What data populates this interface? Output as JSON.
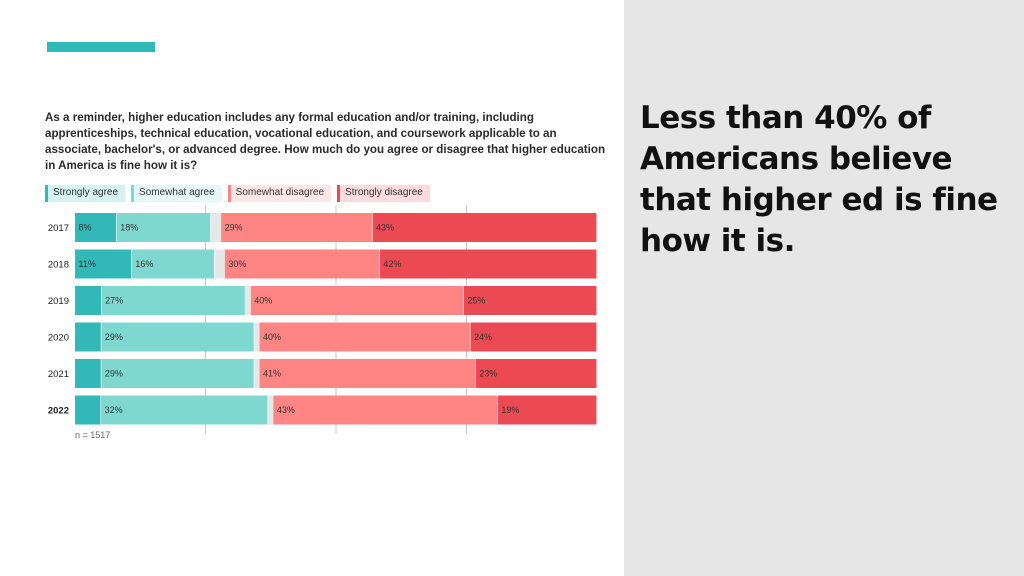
{
  "slide": {
    "headline": "Less than 40% of Americans believe that higher ed is fine how it is."
  },
  "question": "As a reminder, higher education includes any formal education and/or training, including apprenticeships, technical education, vocational education, and coursework applicable to an associate, bachelor's, or advanced degree. How much do you agree or disagree that higher education in America is fine how it is?",
  "footnote": "n = 1517",
  "colors": {
    "strongly_agree": "#33b8b8",
    "somewhat_agree": "#7fd8d0",
    "neutral": "#e3e8e8",
    "somewhat_disagree": "#ff8585",
    "strongly_disagree": "#eb4a55",
    "accent": "#33b8b8"
  },
  "chart_data": {
    "type": "bar",
    "orientation": "horizontal-stacked",
    "categories": [
      "2017",
      "2018",
      "2019",
      "2020",
      "2021",
      "2022"
    ],
    "highlighted_category": "2022",
    "legend_position": "top-left",
    "series": [
      {
        "name": "Strongly agree",
        "color_key": "strongly_agree",
        "values": [
          8,
          11,
          5,
          5,
          5,
          5
        ],
        "labels": [
          "8%",
          "11%",
          "",
          "",
          "",
          ""
        ]
      },
      {
        "name": "Somewhat agree",
        "color_key": "somewhat_agree",
        "values": [
          18,
          16,
          27,
          29,
          29,
          32
        ],
        "labels": [
          "18%",
          "16%",
          "27%",
          "29%",
          "29%",
          "32%"
        ]
      },
      {
        "name": "",
        "color_key": "neutral",
        "values": [
          2,
          2,
          1,
          1,
          1,
          1
        ],
        "labels": [
          "",
          "",
          "",
          "",
          "",
          ""
        ]
      },
      {
        "name": "Somewhat disagree",
        "color_key": "somewhat_disagree",
        "values": [
          29,
          30,
          40,
          40,
          41,
          43
        ],
        "labels": [
          "29%",
          "30%",
          "40%",
          "40%",
          "41%",
          "43%"
        ]
      },
      {
        "name": "Strongly disagree",
        "color_key": "strongly_disagree",
        "values": [
          43,
          42,
          25,
          24,
          23,
          19
        ],
        "labels": [
          "43%",
          "42%",
          "25%",
          "24%",
          "23%",
          "19%"
        ]
      }
    ],
    "xlim": [
      0,
      100
    ],
    "gridlines": [
      25,
      50,
      75
    ]
  }
}
